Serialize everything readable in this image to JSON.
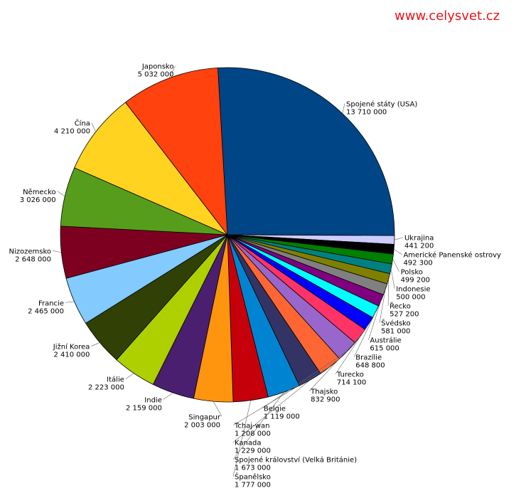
{
  "chart_data": {
    "type": "pie",
    "title": "",
    "direction": "clockwise",
    "start": "top",
    "slices": [
      {
        "label": "Spojené státy (USA)",
        "value": 13710000,
        "value_label": "13 710 000",
        "color": "#004586"
      },
      {
        "label": "Ukrajina",
        "value": 441200,
        "value_label": "441 200",
        "color": "#ccccff"
      },
      {
        "label": "Americké Panenské ostrovy",
        "value": 492300,
        "value_label": "492 300",
        "color": "#000000"
      },
      {
        "label": "Polsko",
        "value": 499200,
        "value_label": "499 200",
        "color": "#008000"
      },
      {
        "label": "Indonesie",
        "value": 500000,
        "value_label": "500 000",
        "color": "#008080"
      },
      {
        "label": "Řecko",
        "value": 527200,
        "value_label": "527 200",
        "color": "#808000"
      },
      {
        "label": "Švédsko",
        "value": 581000,
        "value_label": "581 000",
        "color": "#808080"
      },
      {
        "label": "Austrálie",
        "value": 615000,
        "value_label": "615 000",
        "color": "#800080"
      },
      {
        "label": "Brazílie",
        "value": 648800,
        "value_label": "648 800",
        "color": "#00ffff"
      },
      {
        "label": "Turecko",
        "value": 714100,
        "value_label": "714 100",
        "color": "#0000ff"
      },
      {
        "label": "Thajsko",
        "value": 832900,
        "value_label": "832 900",
        "color": "#ff3366"
      },
      {
        "label": "Belgie",
        "value": 1119000,
        "value_label": "1 119 000",
        "color": "#9966cc"
      },
      {
        "label": "Tchaj-wan",
        "value": 1208000,
        "value_label": "1 208 000",
        "color": "#ff6633"
      },
      {
        "label": "Kanada",
        "value": 1229000,
        "value_label": "1 229 000",
        "color": "#333366"
      },
      {
        "label": "Spojené království (Velká Británie)",
        "value": 1673000,
        "value_label": "1 673 000",
        "color": "#0084d1"
      },
      {
        "label": "Španělsko",
        "value": 1777000,
        "value_label": "1 777 000",
        "color": "#c5000b"
      },
      {
        "label": "Singapur",
        "value": 2003000,
        "value_label": "2 003 000",
        "color": "#ff950e"
      },
      {
        "label": "Indie",
        "value": 2159000,
        "value_label": "2 159 000",
        "color": "#4b1f6f"
      },
      {
        "label": "Itálie",
        "value": 2223000,
        "value_label": "2 223 000",
        "color": "#aecf00"
      },
      {
        "label": "Jižní Korea",
        "value": 2410000,
        "value_label": "2 410 000",
        "color": "#314004"
      },
      {
        "label": "Francie",
        "value": 2465000,
        "value_label": "2 465 000",
        "color": "#83caff"
      },
      {
        "label": "Nizozemsko",
        "value": 2648000,
        "value_label": "2 648 000",
        "color": "#7e0021"
      },
      {
        "label": "Německo",
        "value": 3026000,
        "value_label": "3 026 000",
        "color": "#579d1c"
      },
      {
        "label": "Čína",
        "value": 4210000,
        "value_label": "4 210 000",
        "color": "#ffd320"
      },
      {
        "label": "Japonsko",
        "value": 5032000,
        "value_label": "5 032 000",
        "color": "#ff420e"
      }
    ]
  },
  "watermark": {
    "text": "www.celysvet.cz",
    "color": "#e8141c"
  }
}
